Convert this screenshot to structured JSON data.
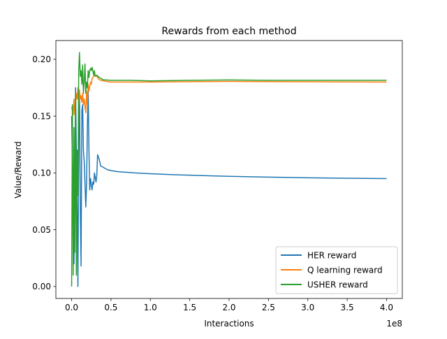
{
  "chart_data": {
    "type": "line",
    "title": "Rewards from each method",
    "xlabel": "Interactions",
    "ylabel": "Value/Reward",
    "x_offset_label": "1e8",
    "xlim": [
      -0.2,
      4.2
    ],
    "ylim": [
      -0.0105,
      0.2165
    ],
    "x_ticks": [
      0.0,
      0.5,
      1.0,
      1.5,
      2.0,
      2.5,
      3.0,
      3.5,
      4.0
    ],
    "x_tick_labels": [
      "0.0",
      "0.5",
      "1.0",
      "1.5",
      "2.0",
      "2.5",
      "3.0",
      "3.5",
      "4.0"
    ],
    "y_ticks": [
      0.0,
      0.05,
      0.1,
      0.15,
      0.2
    ],
    "y_tick_labels": [
      "0.00",
      "0.05",
      "0.10",
      "0.15",
      "0.20"
    ],
    "grid": false,
    "legend_position": "lower-right",
    "series": [
      {
        "name": "HER reward",
        "color": "#1f77b4",
        "points": [
          [
            0.0,
            0.15
          ],
          [
            0.01,
            0.11
          ],
          [
            0.02,
            0.05
          ],
          [
            0.03,
            0.02
          ],
          [
            0.04,
            0.09
          ],
          [
            0.05,
            0.175
          ],
          [
            0.06,
            0.12
          ],
          [
            0.07,
            0.07
          ],
          [
            0.08,
            0.0
          ],
          [
            0.09,
            0.13
          ],
          [
            0.1,
            0.17
          ],
          [
            0.11,
            0.07
          ],
          [
            0.12,
            0.018
          ],
          [
            0.13,
            0.155
          ],
          [
            0.14,
            0.16
          ],
          [
            0.15,
            0.12
          ],
          [
            0.16,
            0.11
          ],
          [
            0.17,
            0.09
          ],
          [
            0.18,
            0.07
          ],
          [
            0.19,
            0.09
          ],
          [
            0.2,
            0.14
          ],
          [
            0.21,
            0.175
          ],
          [
            0.22,
            0.12
          ],
          [
            0.23,
            0.085
          ],
          [
            0.24,
            0.095
          ],
          [
            0.25,
            0.09
          ],
          [
            0.26,
            0.085
          ],
          [
            0.27,
            0.092
          ],
          [
            0.28,
            0.09
          ],
          [
            0.29,
            0.1
          ],
          [
            0.3,
            0.096
          ],
          [
            0.31,
            0.092
          ],
          [
            0.32,
            0.098
          ],
          [
            0.33,
            0.116
          ],
          [
            0.35,
            0.112
          ],
          [
            0.37,
            0.106
          ],
          [
            0.4,
            0.105
          ],
          [
            0.45,
            0.103
          ],
          [
            0.5,
            0.102
          ],
          [
            0.6,
            0.101
          ],
          [
            0.7,
            0.1005
          ],
          [
            0.8,
            0.1
          ],
          [
            1.0,
            0.0993
          ],
          [
            1.25,
            0.0985
          ],
          [
            1.5,
            0.098
          ],
          [
            1.75,
            0.0975
          ],
          [
            2.0,
            0.097
          ],
          [
            2.5,
            0.0963
          ],
          [
            3.0,
            0.0957
          ],
          [
            3.5,
            0.0953
          ],
          [
            4.0,
            0.095
          ]
        ]
      },
      {
        "name": "Q learning reward",
        "color": "#ff7f0e",
        "points": [
          [
            0.0,
            0.158
          ],
          [
            0.01,
            0.155
          ],
          [
            0.02,
            0.151
          ],
          [
            0.03,
            0.165
          ],
          [
            0.04,
            0.151
          ],
          [
            0.05,
            0.16
          ],
          [
            0.06,
            0.17
          ],
          [
            0.07,
            0.165
          ],
          [
            0.08,
            0.175
          ],
          [
            0.09,
            0.16
          ],
          [
            0.1,
            0.173
          ],
          [
            0.11,
            0.165
          ],
          [
            0.12,
            0.168
          ],
          [
            0.13,
            0.162
          ],
          [
            0.14,
            0.17
          ],
          [
            0.15,
            0.16
          ],
          [
            0.16,
            0.165
          ],
          [
            0.17,
            0.158
          ],
          [
            0.18,
            0.153
          ],
          [
            0.19,
            0.172
          ],
          [
            0.2,
            0.16
          ],
          [
            0.21,
            0.178
          ],
          [
            0.22,
            0.172
          ],
          [
            0.23,
            0.176
          ],
          [
            0.24,
            0.18
          ],
          [
            0.25,
            0.178
          ],
          [
            0.26,
            0.183
          ],
          [
            0.28,
            0.185
          ],
          [
            0.3,
            0.186
          ],
          [
            0.32,
            0.185
          ],
          [
            0.35,
            0.182
          ],
          [
            0.4,
            0.181
          ],
          [
            0.5,
            0.18
          ],
          [
            0.75,
            0.18
          ],
          [
            1.0,
            0.18
          ],
          [
            2.0,
            0.1805
          ],
          [
            3.0,
            0.1802
          ],
          [
            4.0,
            0.18
          ]
        ]
      },
      {
        "name": "USHER reward",
        "color": "#2ca02c",
        "points": [
          [
            0.0,
            0.0
          ],
          [
            0.01,
            0.16
          ],
          [
            0.02,
            0.01
          ],
          [
            0.03,
            0.14
          ],
          [
            0.04,
            0.03
          ],
          [
            0.05,
            0.17
          ],
          [
            0.06,
            0.01
          ],
          [
            0.07,
            0.12
          ],
          [
            0.08,
            0.08
          ],
          [
            0.09,
            0.19
          ],
          [
            0.1,
            0.206
          ],
          [
            0.11,
            0.185
          ],
          [
            0.12,
            0.19
          ],
          [
            0.13,
            0.178
          ],
          [
            0.14,
            0.195
          ],
          [
            0.15,
            0.17
          ],
          [
            0.16,
            0.18
          ],
          [
            0.17,
            0.196
          ],
          [
            0.18,
            0.17
          ],
          [
            0.19,
            0.18
          ],
          [
            0.2,
            0.175
          ],
          [
            0.21,
            0.19
          ],
          [
            0.22,
            0.184
          ],
          [
            0.23,
            0.19
          ],
          [
            0.24,
            0.192
          ],
          [
            0.25,
            0.19
          ],
          [
            0.26,
            0.193
          ],
          [
            0.27,
            0.19
          ],
          [
            0.28,
            0.186
          ],
          [
            0.29,
            0.19
          ],
          [
            0.3,
            0.185
          ],
          [
            0.32,
            0.186
          ],
          [
            0.35,
            0.184
          ],
          [
            0.4,
            0.182
          ],
          [
            0.5,
            0.1815
          ],
          [
            0.75,
            0.1815
          ],
          [
            1.0,
            0.181
          ],
          [
            1.5,
            0.1815
          ],
          [
            2.0,
            0.1818
          ],
          [
            2.5,
            0.1815
          ],
          [
            3.0,
            0.1815
          ],
          [
            4.0,
            0.1815
          ]
        ]
      }
    ]
  }
}
